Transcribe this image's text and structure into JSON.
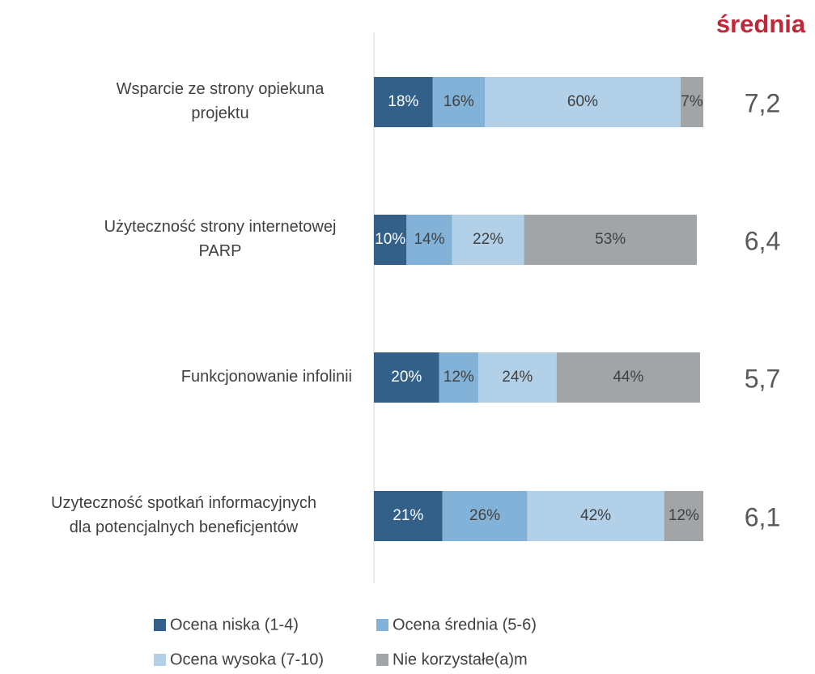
{
  "chart_data": {
    "type": "stacked-bar-horizontal",
    "header": "średnia",
    "categories": [
      [
        "Wsparcie ze strony opiekuna",
        "projektu"
      ],
      [
        "Użyteczność strony internetowej",
        "PARP"
      ],
      [
        "Funkcjonowanie infolinii"
      ],
      [
        "Uzyteczność spotkań informacyjnych",
        "dla potencjalnych beneficjentów"
      ]
    ],
    "xlim": [
      0,
      100
    ],
    "series": [
      {
        "name": "Ocena niska (1-4)",
        "color": "#336088",
        "label_color": "#ffffff",
        "values": [
          18,
          10,
          20,
          21
        ],
        "value_labels": [
          "18%",
          "10%",
          "20%",
          "21%"
        ]
      },
      {
        "name": "Ocena średnia (5-6)",
        "color": "#82b2d7",
        "label_color": "#404040",
        "values": [
          16,
          14,
          12,
          26
        ],
        "value_labels": [
          "16%",
          "14%",
          "12%",
          "26%"
        ]
      },
      {
        "name": "Ocena wysoka (7-10)",
        "color": "#b2d0e7",
        "label_color": "#404040",
        "values": [
          60,
          22,
          24,
          42
        ],
        "value_labels": [
          "60%",
          "22%",
          "24%",
          "42%"
        ]
      },
      {
        "name": "Nie korzystałe(a)m",
        "color": "#a2a5a8",
        "label_color": "#404040",
        "values": [
          7,
          53,
          44,
          12
        ],
        "value_labels": [
          "7%",
          "53%",
          "44%",
          "12%"
        ]
      }
    ],
    "averages": [
      "7,2",
      "6,4",
      "5,7",
      "6,1"
    ]
  }
}
